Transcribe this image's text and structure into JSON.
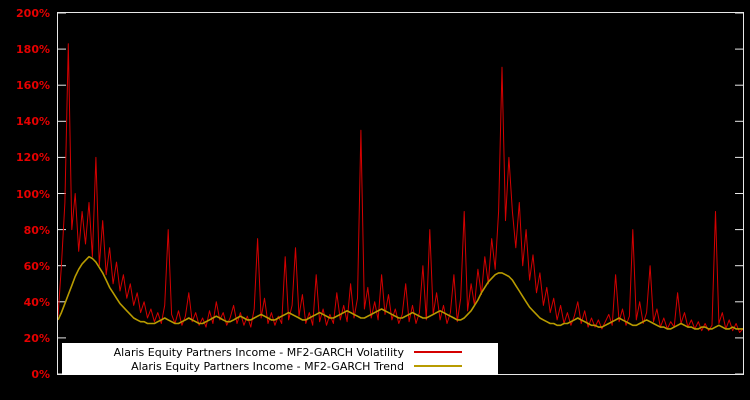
{
  "app": {
    "background": "#000000"
  },
  "axis": {
    "label_color": "#e60000",
    "frame_color": "#e8e8e8"
  },
  "legend": {
    "background": "#ffffff",
    "text_color": "#000000",
    "position": "bottom-inside-left"
  },
  "chart_data": {
    "type": "line",
    "title": "",
    "xlabel": "",
    "ylabel": "",
    "grid": false,
    "ylim": [
      0,
      200
    ],
    "y_tick_labels": [
      "0%",
      "20%",
      "40%",
      "60%",
      "80%",
      "100%",
      "120%",
      "140%",
      "160%",
      "180%",
      "200%"
    ],
    "x_tick_labels": [],
    "series": [
      {
        "key": "volatility",
        "name": "Alaris Equity Partners Income - MF2-GARCH Volatility",
        "color": "#d40000",
        "width": 1,
        "values": [
          32,
          60,
          95,
          183,
          80,
          100,
          68,
          90,
          72,
          95,
          65,
          120,
          60,
          85,
          55,
          70,
          50,
          62,
          46,
          55,
          42,
          50,
          38,
          45,
          34,
          40,
          31,
          36,
          29,
          34,
          28,
          38,
          80,
          33,
          28,
          35,
          27,
          32,
          45,
          29,
          34,
          27,
          31,
          26,
          35,
          28,
          40,
          30,
          34,
          27,
          31,
          38,
          28,
          34,
          27,
          32,
          26,
          36,
          75,
          31,
          42,
          28,
          34,
          27,
          32,
          28,
          65,
          30,
          38,
          70,
          32,
          44,
          28,
          34,
          27,
          55,
          29,
          36,
          27,
          33,
          28,
          45,
          30,
          38,
          29,
          50,
          31,
          42,
          135,
          36,
          48,
          31,
          40,
          30,
          55,
          33,
          44,
          30,
          36,
          28,
          33,
          50,
          29,
          38,
          28,
          34,
          60,
          30,
          80,
          33,
          45,
          30,
          38,
          28,
          34,
          55,
          29,
          42,
          90,
          35,
          50,
          38,
          58,
          44,
          65,
          50,
          75,
          58,
          90,
          170,
          85,
          120,
          90,
          70,
          95,
          60,
          80,
          52,
          66,
          45,
          56,
          38,
          48,
          34,
          42,
          30,
          38,
          28,
          34,
          27,
          32,
          40,
          28,
          35,
          26,
          31,
          26,
          30,
          25,
          29,
          33,
          27,
          55,
          29,
          36,
          27,
          32,
          80,
          30,
          40,
          28,
          34,
          60,
          29,
          36,
          26,
          31,
          25,
          29,
          26,
          45,
          28,
          34,
          26,
          30,
          25,
          29,
          24,
          28,
          24,
          27,
          90,
          28,
          34,
          25,
          30,
          24,
          28,
          23,
          25
        ]
      },
      {
        "key": "trend",
        "name": "Alaris Equity Partners Income - MF2-GARCH Trend",
        "color": "#b89b00",
        "width": 1.6,
        "values": [
          30,
          34,
          39,
          44,
          49,
          54,
          58,
          61,
          63,
          65,
          64,
          62,
          59,
          56,
          52,
          48,
          45,
          42,
          39,
          37,
          35,
          33,
          31,
          30,
          29,
          29,
          28,
          28,
          28,
          29,
          30,
          31,
          30,
          29,
          28,
          28,
          29,
          30,
          31,
          30,
          29,
          28,
          28,
          29,
          30,
          31,
          32,
          31,
          30,
          29,
          29,
          30,
          31,
          32,
          31,
          30,
          30,
          31,
          32,
          33,
          32,
          31,
          30,
          30,
          31,
          32,
          33,
          34,
          33,
          32,
          31,
          30,
          30,
          31,
          32,
          33,
          34,
          33,
          32,
          31,
          31,
          32,
          33,
          34,
          35,
          34,
          33,
          32,
          31,
          31,
          32,
          33,
          34,
          35,
          36,
          35,
          34,
          33,
          32,
          31,
          31,
          32,
          33,
          34,
          33,
          32,
          31,
          31,
          32,
          33,
          34,
          35,
          34,
          33,
          32,
          31,
          30,
          30,
          31,
          33,
          35,
          38,
          41,
          45,
          48,
          51,
          53,
          55,
          56,
          56,
          55,
          54,
          52,
          49,
          46,
          43,
          40,
          37,
          35,
          33,
          31,
          30,
          29,
          28,
          28,
          27,
          27,
          28,
          28,
          29,
          30,
          31,
          30,
          29,
          28,
          27,
          27,
          26,
          26,
          27,
          28,
          29,
          30,
          31,
          30,
          29,
          28,
          27,
          27,
          28,
          29,
          30,
          29,
          28,
          27,
          26,
          26,
          25,
          25,
          26,
          27,
          28,
          27,
          26,
          26,
          25,
          25,
          26,
          26,
          25,
          25,
          26,
          27,
          26,
          25,
          25,
          26,
          25,
          25,
          25
        ]
      }
    ]
  }
}
